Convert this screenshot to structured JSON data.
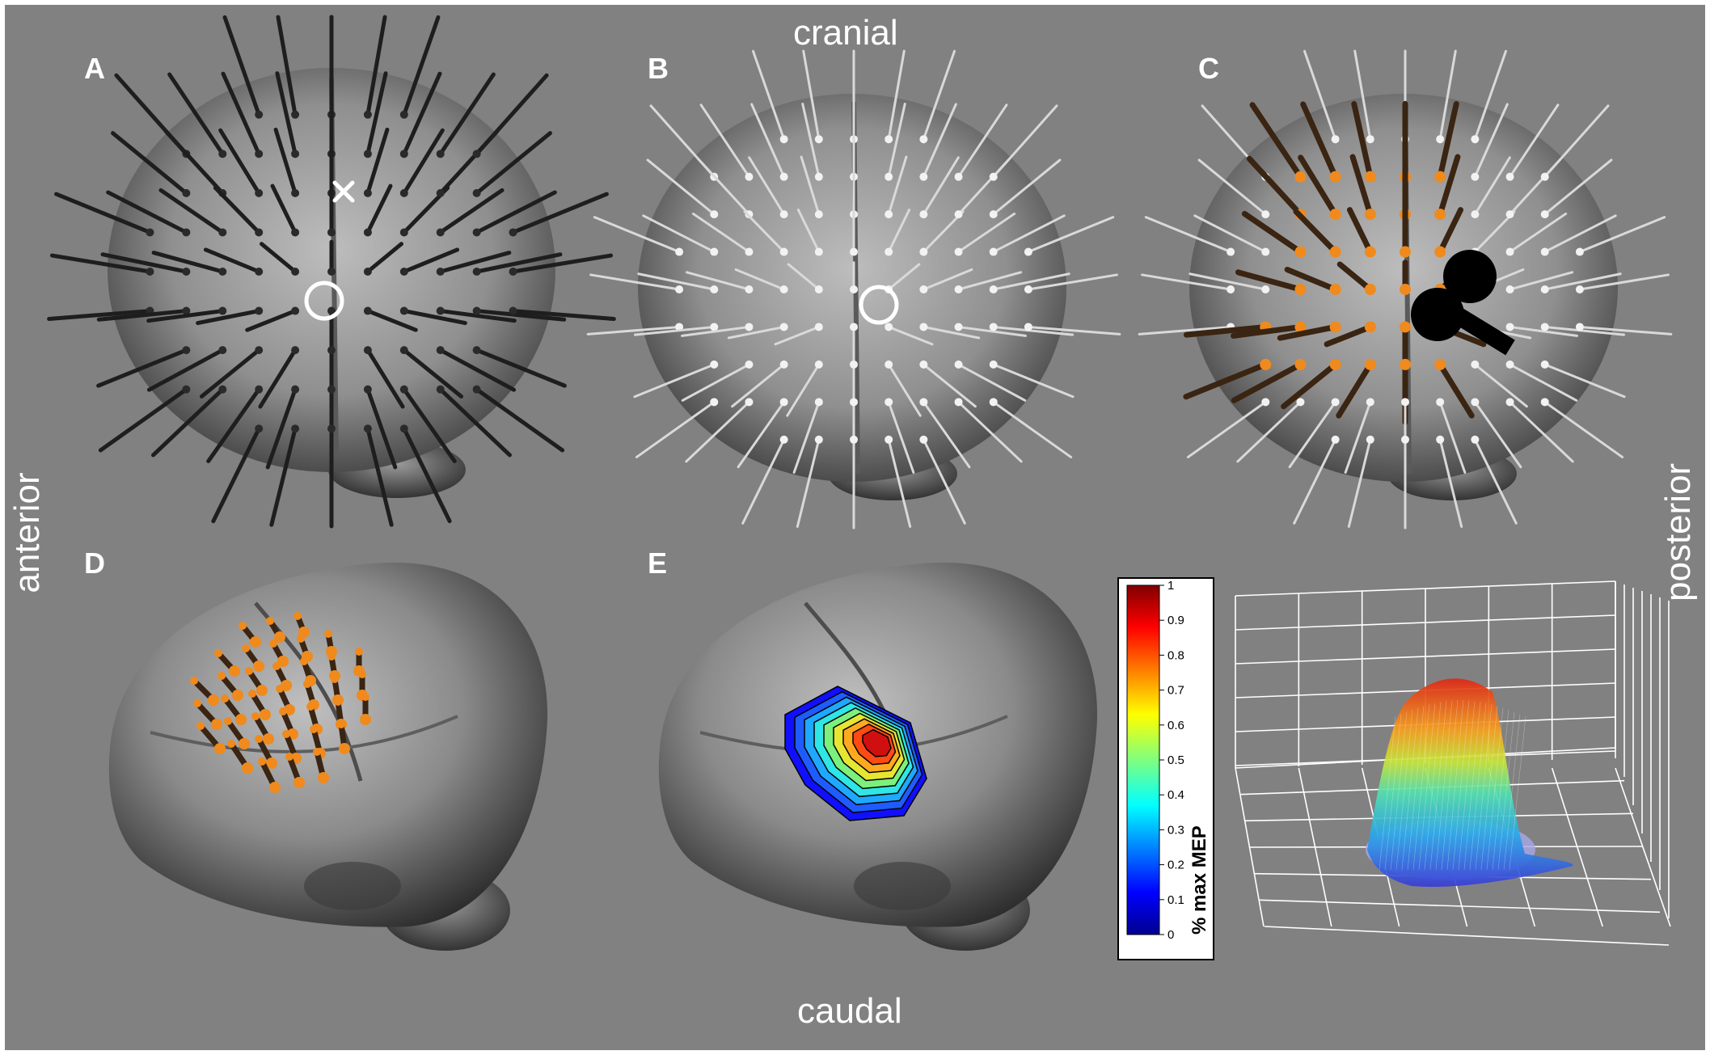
{
  "orientation": {
    "top": "cranial",
    "bottom": "caudal",
    "left": "anterior",
    "right": "posterior"
  },
  "panels": [
    {
      "letter": "A",
      "view": "top",
      "stick_color": "#222222",
      "markers": [
        "cross-marker",
        "circle-marker"
      ]
    },
    {
      "letter": "B",
      "view": "top",
      "stick_color": "#d8d8d8",
      "markers": [
        "circle-marker"
      ]
    },
    {
      "letter": "C",
      "view": "top",
      "stick_color": "#d8d8d8",
      "highlight_color": "#f08a1c",
      "markers": [
        "coil-icon"
      ]
    },
    {
      "letter": "D",
      "view": "lateral",
      "stick_color": "#3a2a1a",
      "highlight_color": "#f08a1c"
    },
    {
      "letter": "E",
      "view": "lateral",
      "overlay": "contour-map"
    }
  ],
  "colorbar": {
    "title": "% max MEP",
    "ticks": [
      "0",
      "0.1",
      "0.2",
      "0.3",
      "0.4",
      "0.5",
      "0.6",
      "0.7",
      "0.8",
      "0.9",
      "1"
    ],
    "colormap": "jet"
  },
  "colors": {
    "background": "#818181",
    "text": "#ffffff",
    "highlight": "#f08a1c",
    "coil": "#000000"
  }
}
